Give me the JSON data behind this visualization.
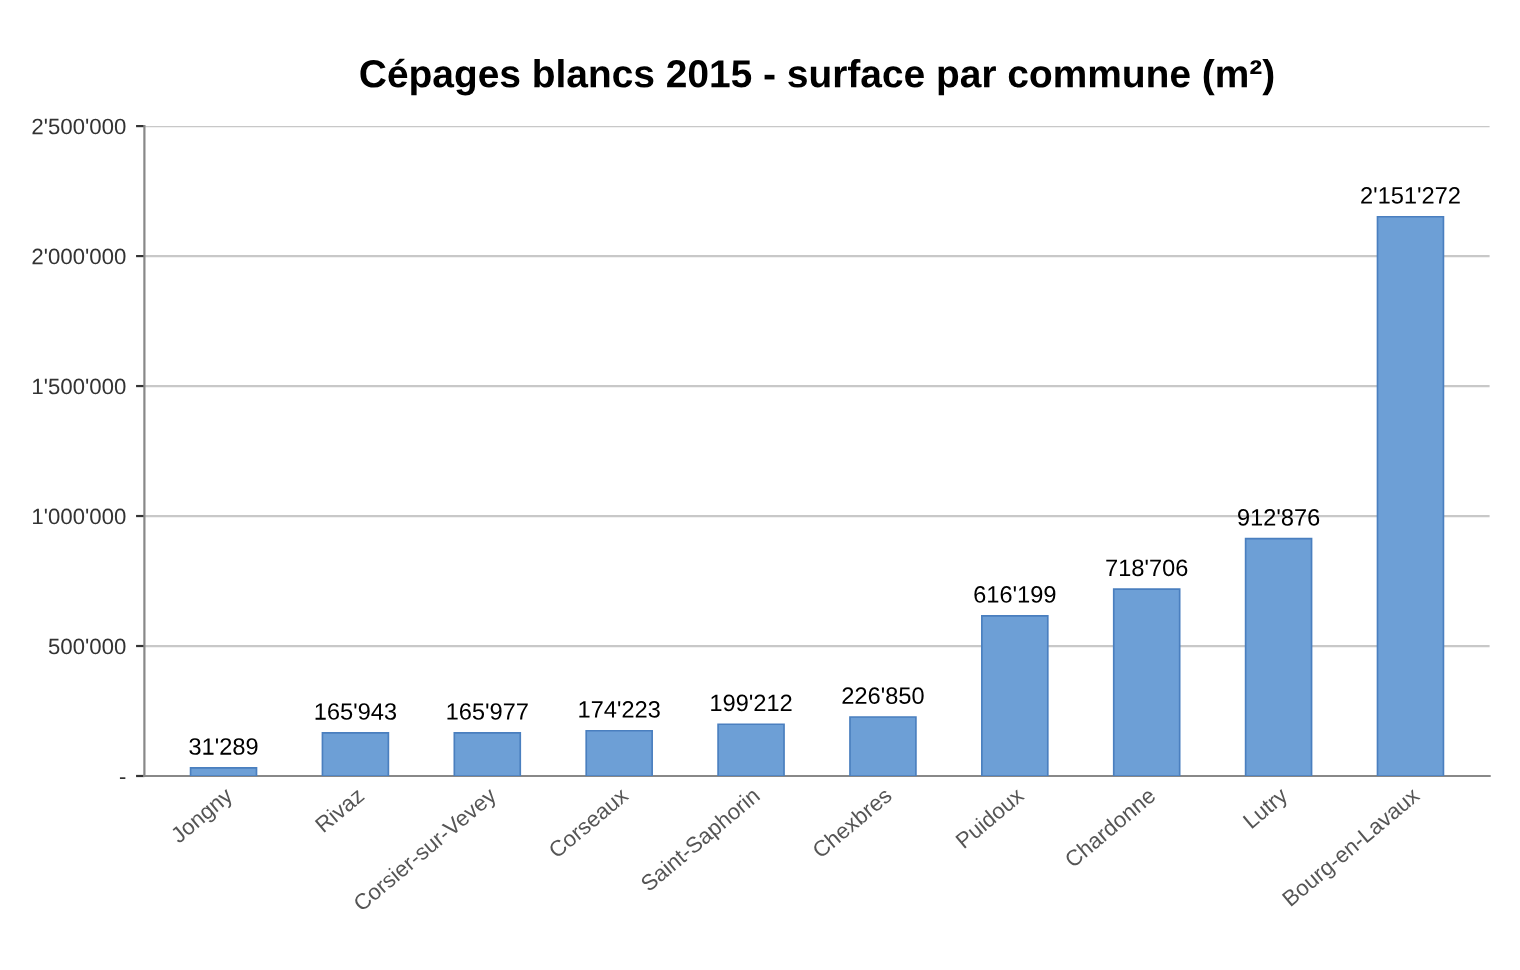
{
  "chart_data": {
    "type": "bar",
    "title": "Cépages blancs 2015 - surface par commune (m²)",
    "categories": [
      "Jongny",
      "Rivaz",
      "Corsier-sur-Vevey",
      "Corseaux",
      "Saint-Saphorin",
      "Chexbres",
      "Puidoux",
      "Chardonne",
      "Lutry",
      "Bourg-en-Lavaux"
    ],
    "values": [
      31289,
      165943,
      165977,
      174223,
      199212,
      226850,
      616199,
      718706,
      912876,
      2151272
    ],
    "value_labels": [
      "31'289",
      "165'943",
      "165'977",
      "174'223",
      "199'212",
      "226'850",
      "616'199",
      "718'706",
      "912'876",
      "2'151'272"
    ],
    "color": "#6d9fd6",
    "ylim": [
      0,
      2500000
    ],
    "yticks": [
      {
        "value": 0,
        "label": "-"
      },
      {
        "value": 500000,
        "label": "500'000"
      },
      {
        "value": 1000000,
        "label": "1'000'000"
      },
      {
        "value": 1500000,
        "label": "1'500'000"
      },
      {
        "value": 2000000,
        "label": "2'000'000"
      },
      {
        "value": 2500000,
        "label": "2'500'000"
      }
    ],
    "grid": "y",
    "legend": false
  }
}
